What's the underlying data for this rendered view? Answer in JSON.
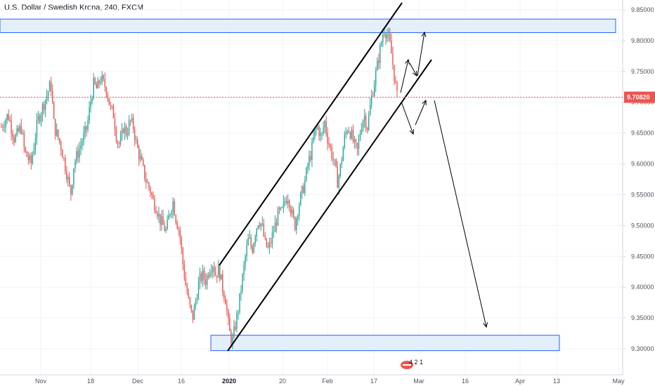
{
  "chart_title": "U.S. Dollar / Swedish Krona, 240, FXCM",
  "colors": {
    "up": "#26a69a",
    "down": "#ef5350",
    "zone_fill": "#dbe9fb",
    "zone_stroke": "#2962ff",
    "price_line": "#ef5350",
    "grid": "#f0f3fa",
    "axis_text": "#50535e"
  },
  "chart_data": {
    "type": "candlestick",
    "symbol": "USDSEK",
    "timeframe": "240",
    "ylim": [
      9.28,
      9.86
    ],
    "y_ticks": [
      "9.85000",
      "9.80000",
      "9.75000",
      "9.70000",
      "9.65000",
      "9.60000",
      "9.55000",
      "9.50000",
      "9.45000",
      "9.40000",
      "9.35000",
      "9.30000"
    ],
    "y_tick_values": [
      9.85,
      9.8,
      9.75,
      9.7,
      9.65,
      9.6,
      9.55,
      9.5,
      9.45,
      9.4,
      9.35,
      9.3
    ],
    "x_ticks": [
      "Nov",
      "18",
      "Dec",
      "16",
      "2020",
      "20",
      "Feb",
      "17",
      "Mar",
      "16",
      "Apr",
      "13",
      "May"
    ],
    "current_price": "9.70820",
    "current_price_value": 9.7082,
    "close_path": [
      [
        0,
        9.66
      ],
      [
        2,
        9.68
      ],
      [
        4,
        9.64
      ],
      [
        6,
        9.66
      ],
      [
        7,
        9.62
      ],
      [
        9,
        9.6
      ],
      [
        11,
        9.67
      ],
      [
        13,
        9.7
      ],
      [
        15,
        9.73
      ],
      [
        16,
        9.66
      ],
      [
        18,
        9.63
      ],
      [
        20,
        9.58
      ],
      [
        21,
        9.55
      ],
      [
        22,
        9.6
      ],
      [
        24,
        9.63
      ],
      [
        26,
        9.66
      ],
      [
        27,
        9.7
      ],
      [
        28,
        9.73
      ],
      [
        29,
        9.72
      ],
      [
        30,
        9.74
      ],
      [
        31,
        9.73
      ],
      [
        32,
        9.72
      ],
      [
        33,
        9.69
      ],
      [
        34,
        9.68
      ],
      [
        35,
        9.64
      ],
      [
        36,
        9.63
      ],
      [
        37,
        9.66
      ],
      [
        38,
        9.65
      ],
      [
        39,
        9.67
      ],
      [
        40,
        9.66
      ],
      [
        41,
        9.63
      ],
      [
        42,
        9.61
      ],
      [
        43,
        9.59
      ],
      [
        44,
        9.57
      ],
      [
        45,
        9.56
      ],
      [
        46,
        9.54
      ],
      [
        47,
        9.53
      ],
      [
        48,
        9.51
      ],
      [
        49,
        9.5
      ],
      [
        50,
        9.49
      ],
      [
        51,
        9.52
      ],
      [
        52,
        9.54
      ],
      [
        53,
        9.51
      ],
      [
        54,
        9.49
      ],
      [
        55,
        9.44
      ],
      [
        56,
        9.4
      ],
      [
        57,
        9.37
      ],
      [
        58,
        9.35
      ],
      [
        59,
        9.38
      ],
      [
        60,
        9.41
      ],
      [
        61,
        9.42
      ],
      [
        62,
        9.41
      ],
      [
        63,
        9.43
      ],
      [
        64,
        9.44
      ],
      [
        65,
        9.42
      ],
      [
        66,
        9.43
      ],
      [
        67,
        9.4
      ],
      [
        68,
        9.38
      ],
      [
        69,
        9.33
      ],
      [
        70,
        9.31
      ],
      [
        71,
        9.34
      ],
      [
        72,
        9.37
      ],
      [
        73,
        9.41
      ],
      [
        74,
        9.45
      ],
      [
        75,
        9.48
      ],
      [
        76,
        9.46
      ],
      [
        77,
        9.49
      ],
      [
        78,
        9.51
      ],
      [
        79,
        9.5
      ],
      [
        80,
        9.47
      ],
      [
        81,
        9.46
      ],
      [
        82,
        9.48
      ],
      [
        83,
        9.5
      ],
      [
        84,
        9.52
      ],
      [
        85,
        9.52
      ],
      [
        86,
        9.54
      ],
      [
        87,
        9.55
      ],
      [
        88,
        9.52
      ],
      [
        89,
        9.5
      ],
      [
        90,
        9.53
      ],
      [
        91,
        9.55
      ],
      [
        92,
        9.57
      ],
      [
        93,
        9.6
      ],
      [
        94,
        9.62
      ],
      [
        95,
        9.65
      ],
      [
        96,
        9.66
      ],
      [
        97,
        9.64
      ],
      [
        98,
        9.67
      ],
      [
        99,
        9.64
      ],
      [
        100,
        9.62
      ],
      [
        101,
        9.6
      ],
      [
        102,
        9.57
      ],
      [
        103,
        9.6
      ],
      [
        104,
        9.64
      ],
      [
        105,
        9.66
      ],
      [
        106,
        9.65
      ],
      [
        107,
        9.63
      ],
      [
        108,
        9.62
      ],
      [
        109,
        9.66
      ],
      [
        110,
        9.68
      ],
      [
        111,
        9.66
      ],
      [
        112,
        9.7
      ],
      [
        113,
        9.73
      ],
      [
        114,
        9.76
      ],
      [
        115,
        9.79
      ],
      [
        116,
        9.82
      ],
      [
        117,
        9.81
      ],
      [
        118,
        9.79
      ],
      [
        119,
        9.75
      ],
      [
        120,
        9.708
      ]
    ],
    "annotations": {
      "resistance_zone": [
        9.813,
        9.835
      ],
      "support_zone": [
        9.297,
        9.322
      ]
    }
  }
}
